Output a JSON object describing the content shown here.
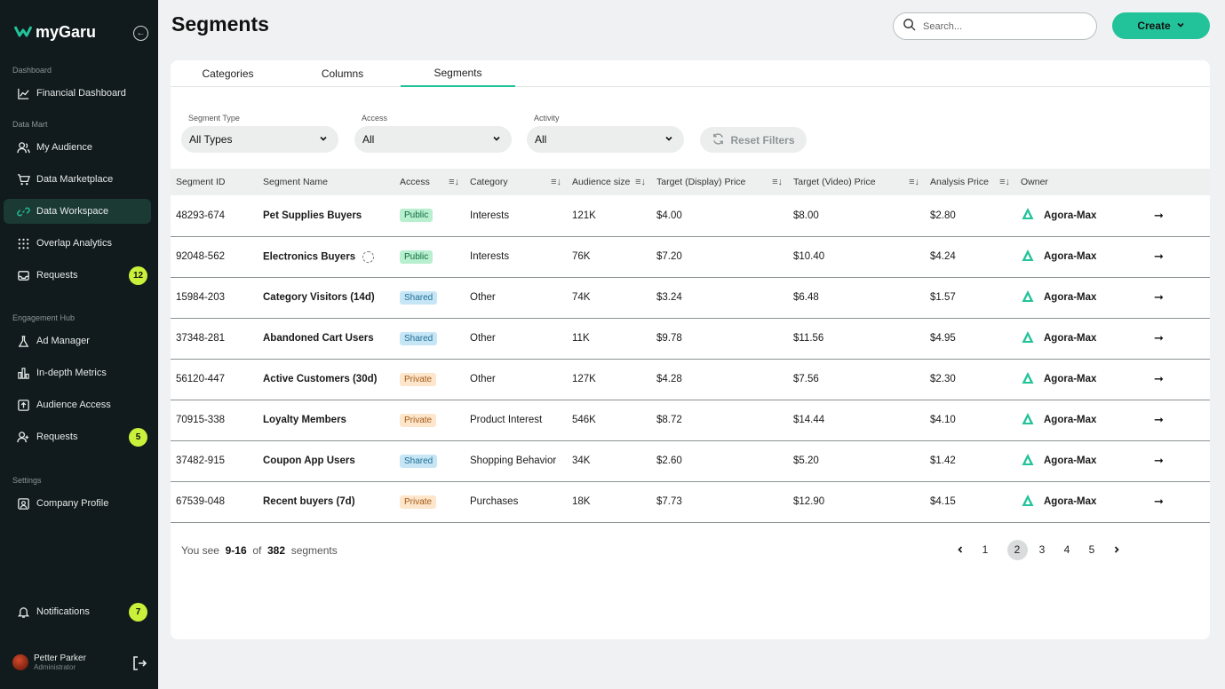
{
  "app": {
    "brand": "myGaru"
  },
  "sidebar": {
    "sections": [
      {
        "label": "Dashboard",
        "items": [
          {
            "label": "Financial Dashboard",
            "icon": "chart-line-icon"
          }
        ]
      },
      {
        "label": "Data Mart",
        "items": [
          {
            "label": "My Audience",
            "icon": "users-icon"
          },
          {
            "label": "Data Marketplace",
            "icon": "cart-icon"
          },
          {
            "label": "Data Workspace",
            "icon": "link-icon",
            "active": true
          },
          {
            "label": "Overlap Analytics",
            "icon": "grid-icon"
          },
          {
            "label": "Requests",
            "icon": "inbox-icon",
            "badge": "12"
          }
        ]
      },
      {
        "label": "Engagement Hub",
        "items": [
          {
            "label": "Ad Manager",
            "icon": "flask-icon"
          },
          {
            "label": "In-depth Metrics",
            "icon": "bar-chart-icon"
          },
          {
            "label": "Audience Access",
            "icon": "upload-icon"
          },
          {
            "label": "Requests",
            "icon": "user-plus-icon",
            "badge": "5"
          }
        ]
      },
      {
        "label": "Settings",
        "items": [
          {
            "label": "Company Profile",
            "icon": "profile-icon"
          }
        ]
      }
    ],
    "notifications": {
      "label": "Notifications",
      "badge": "7"
    },
    "user": {
      "name": "Petter Parker",
      "role": "Administrator"
    }
  },
  "header": {
    "title": "Segments",
    "search_placeholder": "Search...",
    "create_label": "Create"
  },
  "tabs": [
    {
      "label": "Categories"
    },
    {
      "label": "Columns"
    },
    {
      "label": "Segments",
      "active": true
    }
  ],
  "filters": {
    "segment_type": {
      "label": "Segment Type",
      "value": "All Types"
    },
    "access": {
      "label": "Access",
      "value": "All"
    },
    "activity": {
      "label": "Activity",
      "value": "All"
    },
    "reset_label": "Reset Filters"
  },
  "table": {
    "columns": [
      "Segment ID",
      "Segment Name",
      "Access",
      "Category",
      "Audience size",
      "Target (Display) Price",
      "Target (Video) Price",
      "Analysis Price",
      "Owner"
    ],
    "rows": [
      {
        "id": "48293-674",
        "name": "Pet Supplies Buyers",
        "access": "Public",
        "category": "Interests",
        "size": "121K",
        "display": "$4.00",
        "video": "$8.00",
        "analysis": "$2.80",
        "owner": "Agora-Max"
      },
      {
        "id": "92048-562",
        "name": "Electronics Buyers",
        "access": "Public",
        "category": "Interests",
        "size": "76K",
        "display": "$7.20",
        "video": "$10.40",
        "analysis": "$4.24",
        "owner": "Agora-Max",
        "loading": true
      },
      {
        "id": "15984-203",
        "name": "Category Visitors (14d)",
        "access": "Shared",
        "category": "Other",
        "size": "74K",
        "display": "$3.24",
        "video": "$6.48",
        "analysis": "$1.57",
        "owner": "Agora-Max"
      },
      {
        "id": "37348-281",
        "name": "Abandoned Cart Users",
        "access": "Shared",
        "category": "Other",
        "size": "11K",
        "display": "$9.78",
        "video": "$11.56",
        "analysis": "$4.95",
        "owner": "Agora-Max"
      },
      {
        "id": "56120-447",
        "name": "Active Customers (30d)",
        "access": "Private",
        "category": "Other",
        "size": "127K",
        "display": "$4.28",
        "video": "$7.56",
        "analysis": "$2.30",
        "owner": "Agora-Max"
      },
      {
        "id": "70915-338",
        "name": "Loyalty Members",
        "access": "Private",
        "category": "Product Interest",
        "size": "546K",
        "display": "$8.72",
        "video": "$14.44",
        "analysis": "$4.10",
        "owner": "Agora-Max"
      },
      {
        "id": "37482-915",
        "name": "Coupon App Users",
        "access": "Shared",
        "category": "Shopping Behavior",
        "size": "34K",
        "display": "$2.60",
        "video": "$5.20",
        "analysis": "$1.42",
        "owner": "Agora-Max"
      },
      {
        "id": "67539-048",
        "name": "Recent buyers (7d)",
        "access": "Private",
        "category": "Purchases",
        "size": "18K",
        "display": "$7.73",
        "video": "$12.90",
        "analysis": "$4.15",
        "owner": "Agora-Max"
      }
    ]
  },
  "footer": {
    "prefix": "You see",
    "range": "9-16",
    "of": "of",
    "total": "382",
    "suffix": "segments",
    "pages": [
      "1",
      "2",
      "3",
      "4",
      "5"
    ],
    "current_page": "2"
  },
  "colors": {
    "accent": "#22c29a",
    "sidebar_bg": "#111a1c",
    "badge": "#c9f03a"
  }
}
